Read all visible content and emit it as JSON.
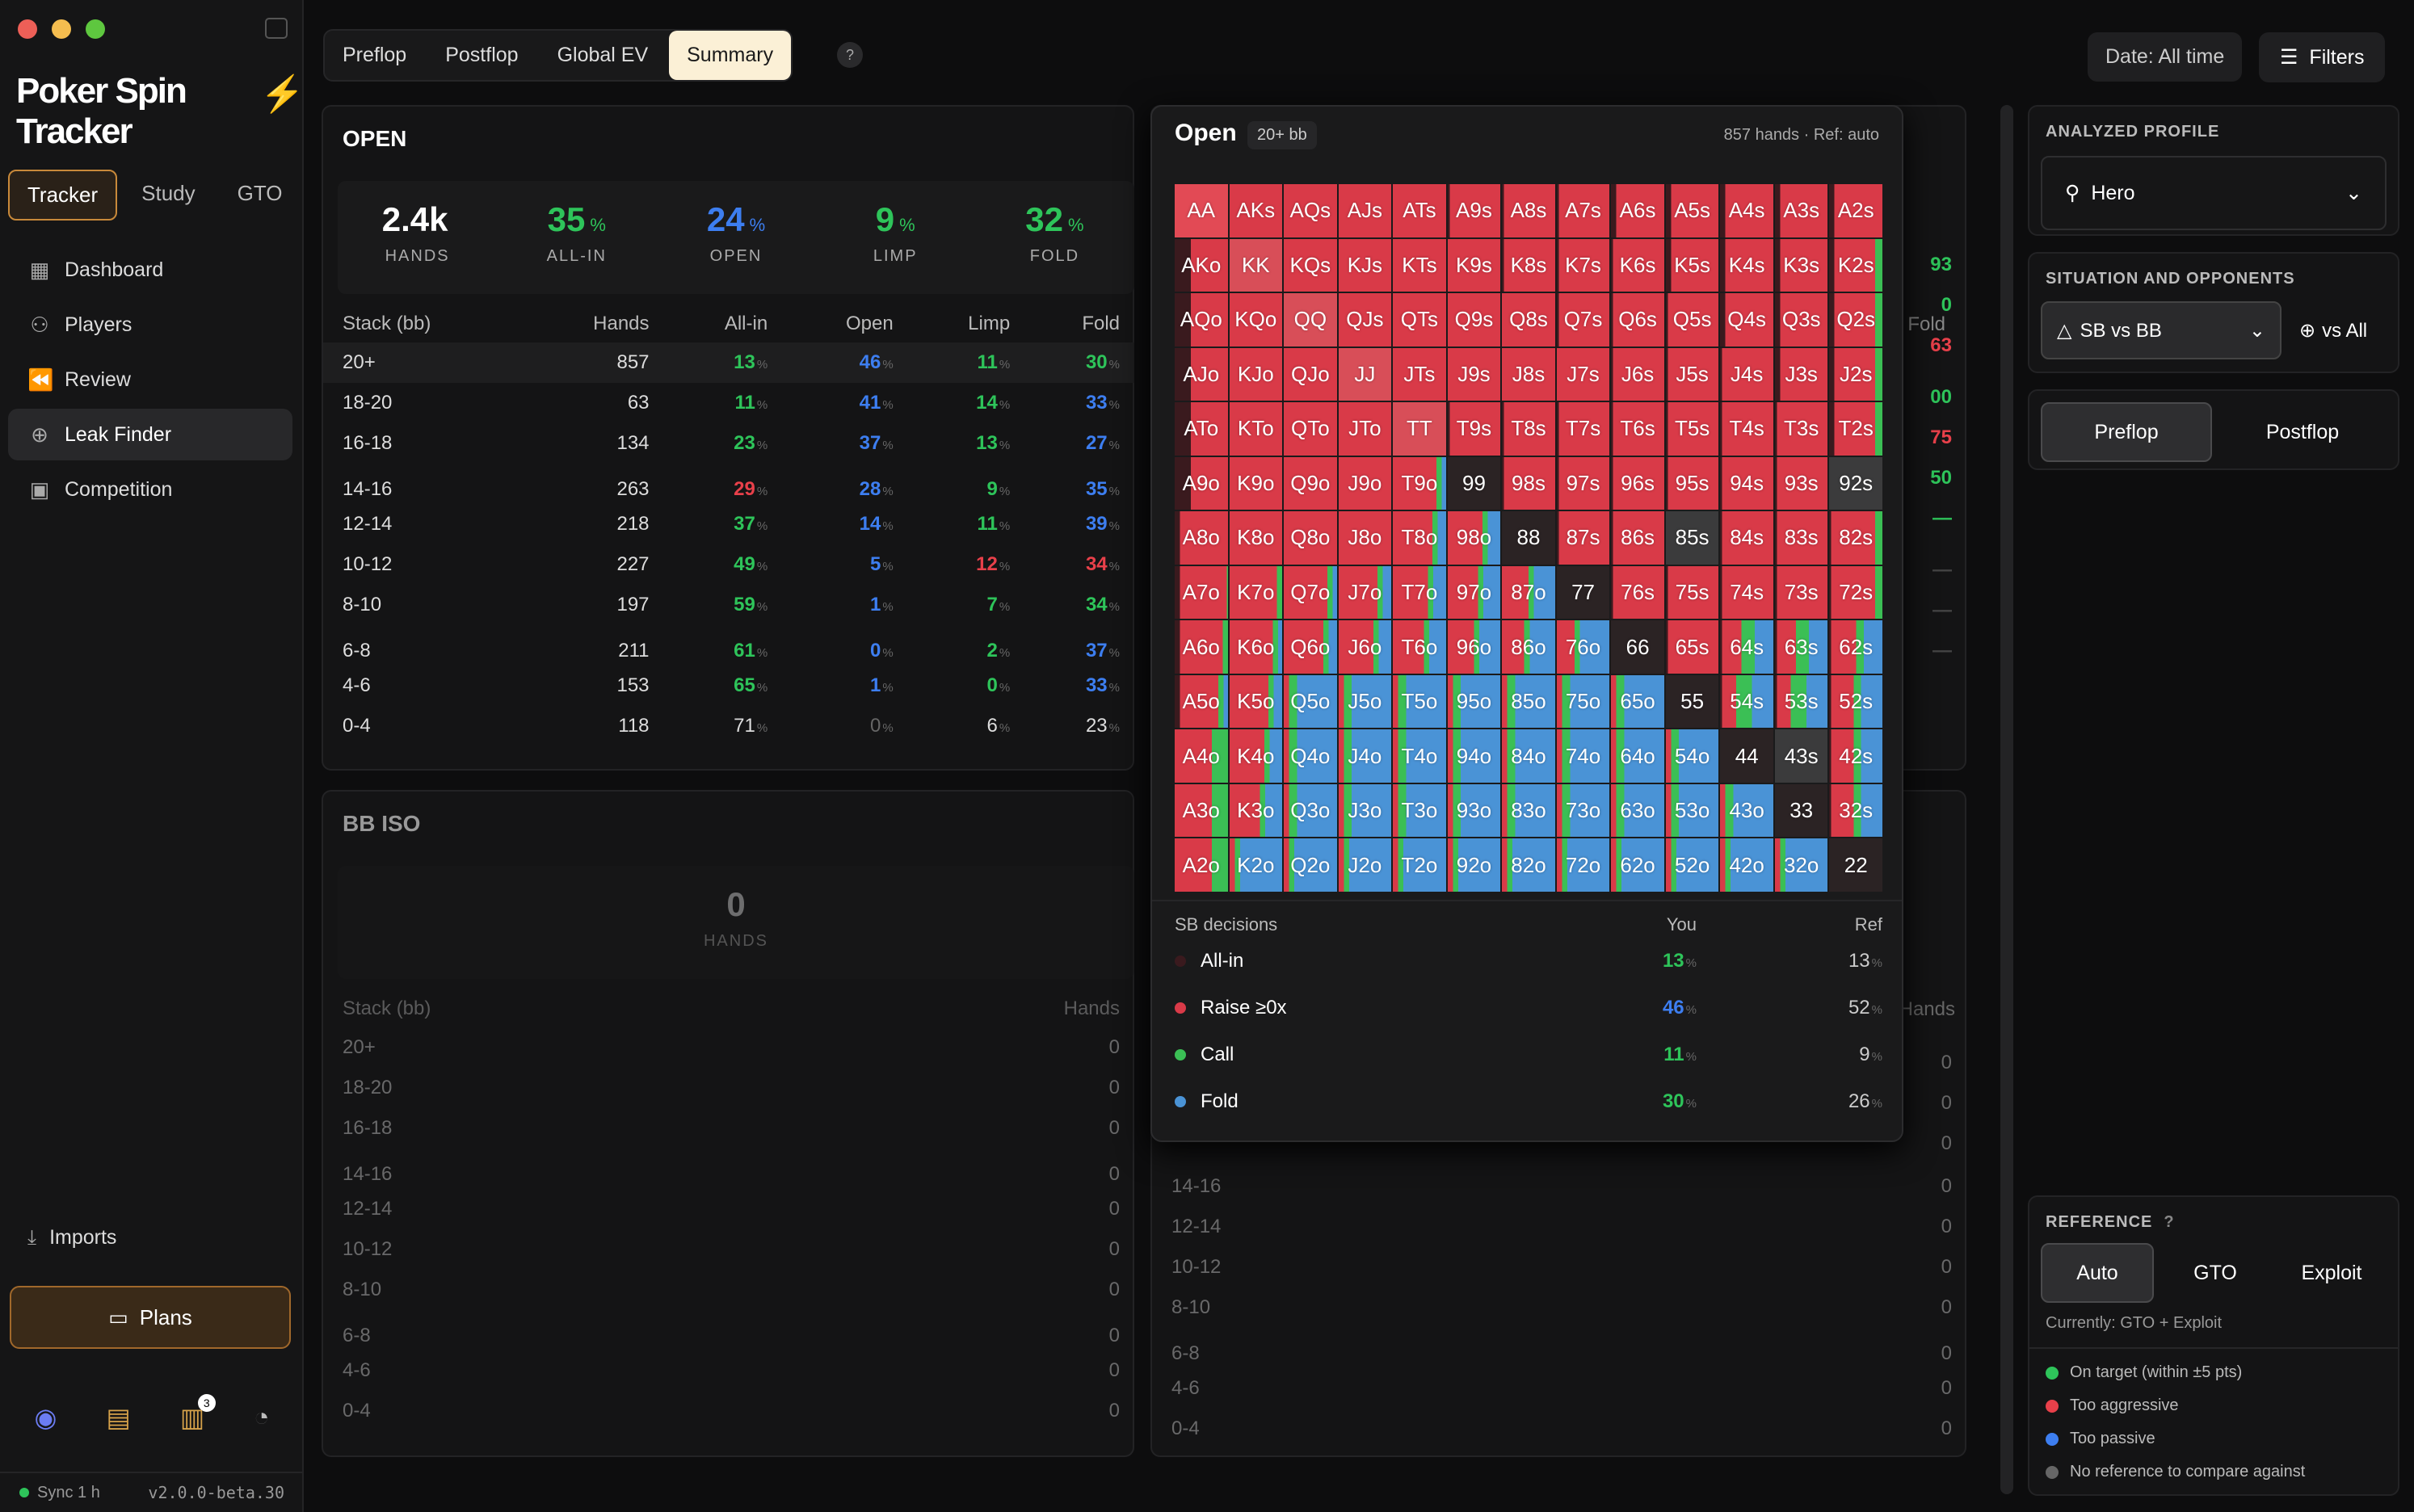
{
  "app": {
    "name": "Poker Spin Tracker"
  },
  "sidebar": {
    "modes": [
      "Tracker",
      "Study",
      "GTO"
    ],
    "nav": [
      {
        "label": "Dashboard",
        "icon": "dashboard-icon"
      },
      {
        "label": "Players",
        "icon": "players-icon"
      },
      {
        "label": "Review",
        "icon": "review-icon"
      },
      {
        "label": "Leak Finder",
        "icon": "crosshair-icon"
      },
      {
        "label": "Competition",
        "icon": "trophy-icon"
      }
    ],
    "imports": "Imports",
    "plans": "Plans",
    "notification_count": "3",
    "sync": "Sync 1 h",
    "version": "v2.0.0-beta.30"
  },
  "tabs": [
    "Preflop",
    "Postflop",
    "Global EV",
    "Summary"
  ],
  "help": "?",
  "date_filter": "Date: All time",
  "filters_label": "Filters",
  "open_panel": {
    "title": "OPEN",
    "kpis": [
      {
        "value": "2.4k",
        "unit": "",
        "label": "HANDS"
      },
      {
        "value": "35",
        "unit": "%",
        "label": "ALL-IN"
      },
      {
        "value": "24",
        "unit": "%",
        "label": "OPEN"
      },
      {
        "value": "9",
        "unit": "%",
        "label": "LIMP"
      },
      {
        "value": "32",
        "unit": "%",
        "label": "FOLD"
      }
    ],
    "headers": [
      "Stack (bb)",
      "Hands",
      "All-in",
      "Open",
      "Limp",
      "Fold"
    ],
    "rows": [
      [
        "20+",
        "857",
        "13",
        "46",
        "11",
        "30"
      ],
      [
        "18-20",
        "63",
        "11",
        "41",
        "14",
        "33"
      ],
      [
        "16-18",
        "134",
        "23",
        "37",
        "13",
        "27"
      ],
      [
        "14-16",
        "263",
        "29",
        "28",
        "9",
        "35"
      ],
      [
        "12-14",
        "218",
        "37",
        "14",
        "11",
        "39"
      ],
      [
        "10-12",
        "227",
        "49",
        "5",
        "12",
        "34"
      ],
      [
        "8-10",
        "197",
        "59",
        "1",
        "7",
        "34"
      ],
      [
        "6-8",
        "211",
        "61",
        "0",
        "2",
        "37"
      ],
      [
        "4-6",
        "153",
        "65",
        "1",
        "0",
        "33"
      ],
      [
        "0-4",
        "118",
        "71",
        "0",
        "6",
        "23"
      ]
    ]
  },
  "bb_iso": {
    "title": "BB ISO",
    "hands_value": "0",
    "hands_label": "HANDS",
    "headers": [
      "Stack (bb)",
      "Hands"
    ],
    "rows": [
      [
        "20+",
        "0"
      ],
      [
        "18-20",
        "0"
      ],
      [
        "16-18",
        "0"
      ],
      [
        "14-16",
        "0"
      ],
      [
        "12-14",
        "0"
      ],
      [
        "10-12",
        "0"
      ],
      [
        "8-10",
        "0"
      ],
      [
        "6-8",
        "0"
      ],
      [
        "4-6",
        "0"
      ],
      [
        "0-4",
        "0"
      ]
    ]
  },
  "third_panel": {
    "fold_header": "Fold",
    "fold_values": [
      "93",
      "0",
      "63",
      "00",
      "75",
      "50",
      "—",
      "—",
      "—",
      "—"
    ],
    "hands_header": "Hands",
    "rows": [
      [
        "14-16",
        "0"
      ],
      [
        "12-14",
        "0"
      ],
      [
        "10-12",
        "0"
      ],
      [
        "8-10",
        "0"
      ],
      [
        "6-8",
        "0"
      ],
      [
        "4-6",
        "0"
      ],
      [
        "0-4",
        "0"
      ]
    ],
    "hidden_rows": [
      "0",
      "0",
      "0"
    ]
  },
  "popover": {
    "title": "Open",
    "badge": "20+ bb",
    "meta": "857 hands · Ref: auto",
    "decisions_header": "SB decisions",
    "you_header": "You",
    "ref_header": "Ref",
    "decisions": [
      {
        "label": "All-in",
        "you": "13",
        "ref": "13",
        "color": "#3a1a1e"
      },
      {
        "label": "Raise ≥0x",
        "you": "46",
        "ref": "52",
        "color": "#d93a48"
      },
      {
        "label": "Call",
        "you": "11",
        "ref": "9",
        "color": "#3bbf55"
      },
      {
        "label": "Fold",
        "you": "30",
        "ref": "26",
        "color": "#4a93d6"
      }
    ]
  },
  "right": {
    "profile_label": "ANALYZED PROFILE",
    "profile": "Hero",
    "situation_label": "SITUATION AND OPPONENTS",
    "situation": "SB vs BB",
    "opponents": "vs All",
    "street_tabs": [
      "Preflop",
      "Postflop"
    ],
    "reference_label": "REFERENCE",
    "reference_help": "?",
    "reference_tabs": [
      "Auto",
      "GTO",
      "Exploit"
    ],
    "currently": "Currently: GTO + Exploit",
    "legend": [
      {
        "label": "On target (within ±5 pts)",
        "color": "#2ec45a"
      },
      {
        "label": "Too aggressive",
        "color": "#e8404a"
      },
      {
        "label": "Too passive",
        "color": "#3d7ef0"
      },
      {
        "label": "No reference to compare against",
        "color": "#666"
      }
    ]
  },
  "colors": {
    "allin": "#3a1a1e",
    "raise": "#d93a48",
    "call": "#3bbf55",
    "fold": "#4a93d6",
    "accent": "#f0952a"
  }
}
